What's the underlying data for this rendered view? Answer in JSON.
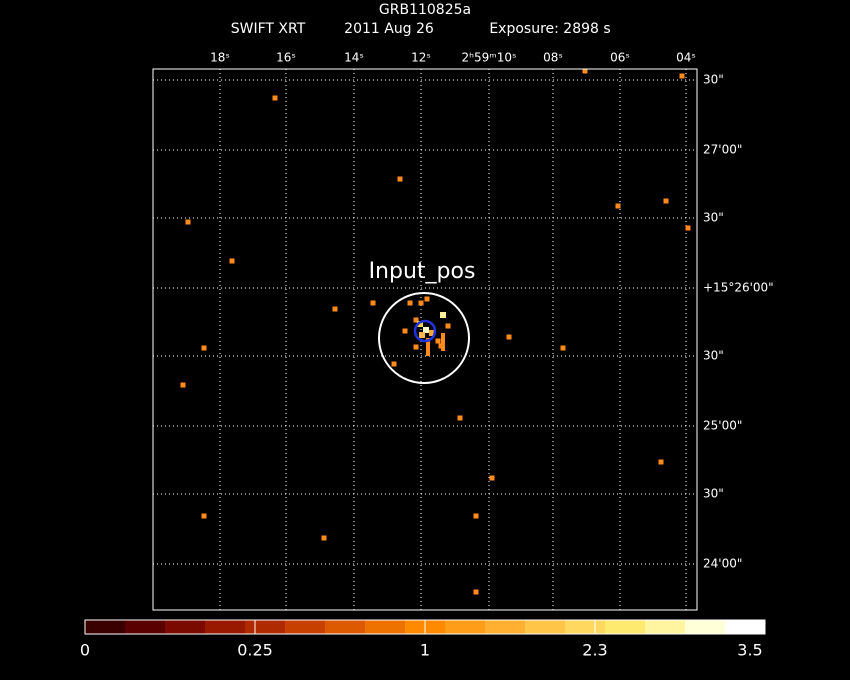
{
  "header": {
    "title": "GRB110825a",
    "instrument": "SWIFT XRT",
    "date": "2011 Aug 26",
    "exposure": "Exposure: 2898 s"
  },
  "top_axis": [
    "18ˢ",
    "16ˢ",
    "14ˢ",
    "12ˢ",
    "2ʰ59ᵐ10ˢ",
    "08ˢ",
    "06ˢ",
    "04ˢ"
  ],
  "right_axis": [
    "30\"",
    "27'00\"",
    "30\"",
    "+15°26'00\"",
    "30\"",
    "25'00\"",
    "30\"",
    "24'00\""
  ],
  "region_label": "Input_pos",
  "colorbar": [
    "0",
    "0.25",
    "1",
    "2.3",
    "3.5"
  ]
}
